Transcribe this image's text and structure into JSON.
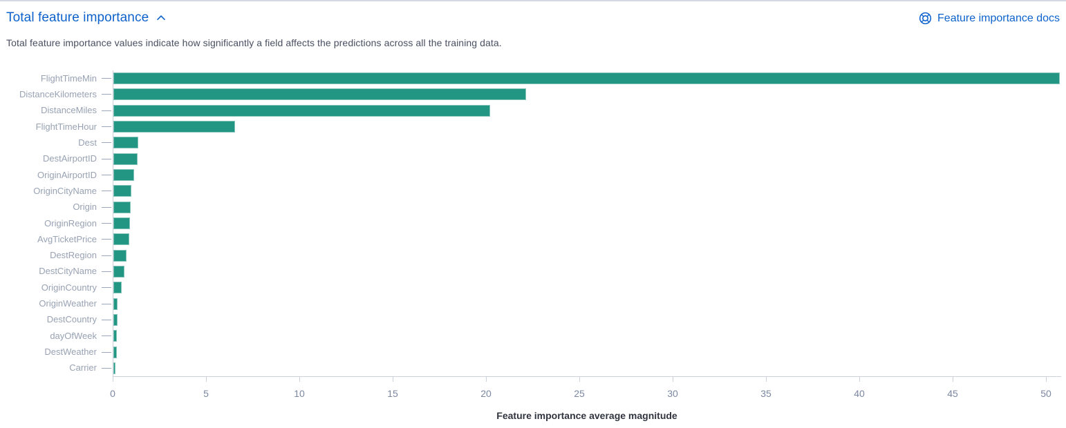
{
  "header": {
    "title": "Total feature importance",
    "collapse_icon": "chevron-up-icon",
    "docs_link_label": "Feature importance docs",
    "docs_icon": "life-ring-docs-icon"
  },
  "description": "Total feature importance values indicate how significantly a field affects the predictions across all the training data.",
  "colors": {
    "link_blue": "#0e62cc",
    "bar_teal": "#229583",
    "axis_line": "#ccd0dd",
    "x_tick_label": "#7b87a2",
    "y_tick_label": "#98a2b3",
    "axis_title_text": "#30343f",
    "description_text": "#494f60"
  },
  "chart_data": {
    "type": "bar",
    "orientation": "horizontal",
    "title": "Total feature importance",
    "categories": [
      "FlightTimeMin",
      "DistanceKilometers",
      "DistanceMiles",
      "FlightTimeHour",
      "Dest",
      "DestAirportID",
      "OriginAirportID",
      "OriginCityName",
      "Origin",
      "OriginRegion",
      "AvgTicketPrice",
      "DestRegion",
      "DestCityName",
      "OriginCountry",
      "OriginWeather",
      "DestCountry",
      "dayOfWeek",
      "DestWeather",
      "Carrier"
    ],
    "values": [
      50.7,
      22.1,
      20.2,
      6.5,
      1.35,
      1.3,
      1.1,
      0.96,
      0.94,
      0.89,
      0.85,
      0.72,
      0.6,
      0.43,
      0.22,
      0.21,
      0.2,
      0.17,
      0.1
    ],
    "xlabel": "Feature importance average magnitude",
    "ylabel": "",
    "xticks": [
      0,
      5,
      10,
      15,
      20,
      25,
      30,
      35,
      40,
      45,
      50
    ],
    "xlim": [
      0,
      50.8
    ],
    "grid": false,
    "legend": "none",
    "bar_color": "#229583"
  }
}
